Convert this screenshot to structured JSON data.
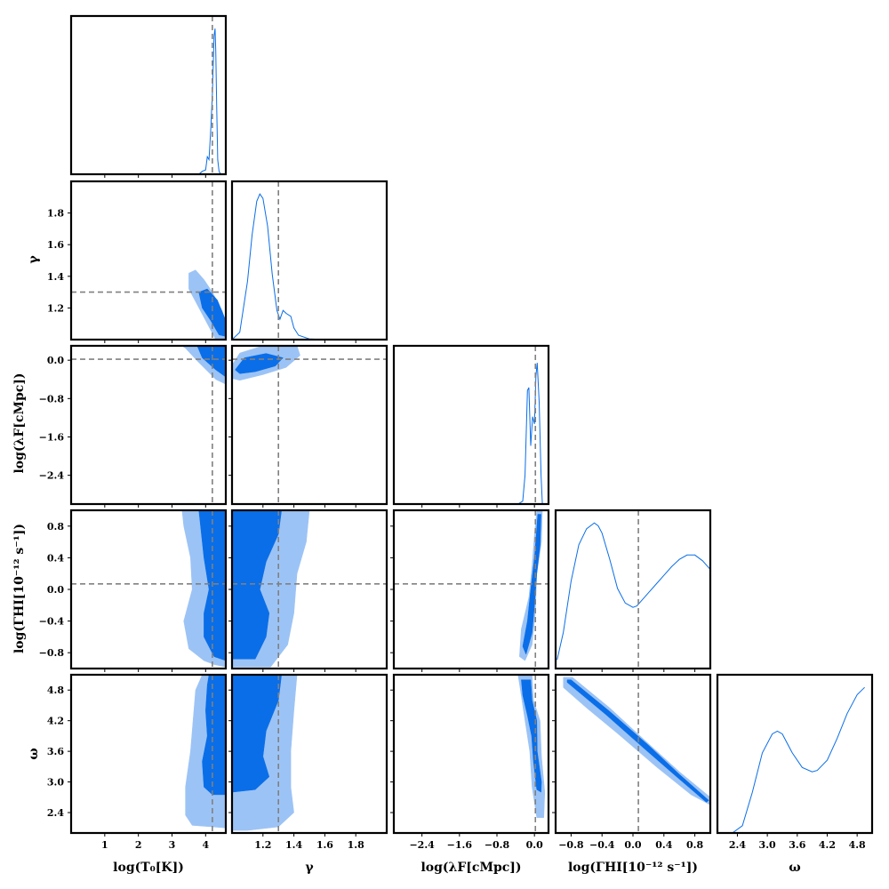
{
  "chart_data": {
    "type": "corner",
    "colors": {
      "outer_fill": "#9cc3f5",
      "inner_fill": "#0a6ee8",
      "line": "#0a6ee8",
      "truth_line": "#808080",
      "frame": "#000000"
    },
    "parameters": [
      {
        "label": "log(T₀[K])",
        "range": [
          0,
          4.6
        ],
        "ticks": [
          1,
          2,
          3,
          4
        ],
        "tick_labels": [
          "1",
          "2",
          "3",
          "4"
        ],
        "truth": 4.2
      },
      {
        "label": "γ",
        "range": [
          1.0,
          2.0
        ],
        "ticks": [
          1.2,
          1.4,
          1.6,
          1.8
        ],
        "tick_labels": [
          "1.2",
          "1.4",
          "1.6",
          "1.8"
        ],
        "truth": 1.3
      },
      {
        "label": "log(λF[cMpc])",
        "range": [
          -3.0,
          0.3
        ],
        "ticks": [
          -2.4,
          -1.6,
          -0.8,
          0.0
        ],
        "tick_labels": [
          "−2.4",
          "−1.6",
          "−0.8",
          "0.0"
        ],
        "truth": 0.02
      },
      {
        "label": "log(ΓHI[10⁻¹² s⁻¹])",
        "range": [
          -1.0,
          1.0
        ],
        "ticks": [
          -0.8,
          -0.4,
          0.0,
          0.4,
          0.8
        ],
        "tick_labels": [
          "−0.8",
          "−0.4",
          "0.0",
          "0.4",
          "0.8"
        ],
        "truth": 0.07
      },
      {
        "label": "ω",
        "range": [
          2.0,
          5.1
        ],
        "ticks": [
          2.4,
          3.0,
          3.6,
          4.2,
          4.8
        ],
        "tick_labels": [
          "2.4",
          "3.0",
          "3.6",
          "4.2",
          "4.8"
        ],
        "truth": null
      }
    ],
    "marginals": [
      {
        "param": 0,
        "x": [
          3.5,
          3.8,
          3.9,
          4.0,
          4.05,
          4.1,
          4.15,
          4.2,
          4.25,
          4.28,
          4.3,
          4.33,
          4.36,
          4.4,
          4.45,
          4.6
        ],
        "y": [
          0,
          0,
          0.02,
          0.03,
          0.12,
          0.1,
          0.3,
          0.55,
          0.95,
          1.0,
          0.85,
          0.45,
          0.1,
          0.02,
          0,
          0
        ]
      },
      {
        "param": 1,
        "x": [
          1.0,
          1.05,
          1.1,
          1.13,
          1.16,
          1.18,
          1.2,
          1.23,
          1.26,
          1.29,
          1.31,
          1.33,
          1.35,
          1.38,
          1.4,
          1.43,
          1.5,
          1.6,
          2.0
        ],
        "y": [
          0,
          0.05,
          0.4,
          0.72,
          0.95,
          1.0,
          0.97,
          0.78,
          0.45,
          0.2,
          0.14,
          0.2,
          0.18,
          0.16,
          0.08,
          0.03,
          0.005,
          0,
          0
        ]
      },
      {
        "param": 2,
        "x": [
          -0.6,
          -0.35,
          -0.25,
          -0.2,
          -0.15,
          -0.12,
          -0.08,
          -0.04,
          0.0,
          0.03,
          0.06,
          0.1,
          0.14,
          0.17,
          0.3
        ],
        "y": [
          0,
          0,
          0.02,
          0.2,
          0.78,
          0.8,
          0.4,
          0.6,
          0.55,
          0.88,
          0.97,
          0.7,
          0.2,
          0,
          0
        ]
      },
      {
        "param": 3,
        "x": [
          -0.98,
          -0.9,
          -0.8,
          -0.7,
          -0.6,
          -0.5,
          -0.45,
          -0.4,
          -0.3,
          -0.2,
          -0.1,
          0.0,
          0.05,
          0.1,
          0.2,
          0.3,
          0.4,
          0.5,
          0.6,
          0.7,
          0.8,
          0.9,
          1.0
        ],
        "y": [
          0.06,
          0.25,
          0.6,
          0.85,
          0.96,
          1.0,
          0.98,
          0.93,
          0.75,
          0.55,
          0.45,
          0.42,
          0.43,
          0.46,
          0.52,
          0.58,
          0.64,
          0.7,
          0.75,
          0.78,
          0.78,
          0.74,
          0.68
        ]
      },
      {
        "param": 4,
        "x": [
          2.0,
          2.3,
          2.5,
          2.7,
          2.9,
          3.1,
          3.2,
          3.3,
          3.5,
          3.7,
          3.9,
          4.0,
          4.2,
          4.4,
          4.6,
          4.8,
          4.95
        ],
        "y": [
          0,
          0,
          0.05,
          0.28,
          0.55,
          0.68,
          0.7,
          0.68,
          0.55,
          0.45,
          0.42,
          0.43,
          0.5,
          0.65,
          0.82,
          0.95,
          1.0
        ]
      }
    ],
    "joint_contours": [
      {
        "x": 0,
        "y": 1,
        "outer": [
          [
            3.5,
            1.42
          ],
          [
            3.7,
            1.44
          ],
          [
            3.95,
            1.38
          ],
          [
            4.2,
            1.3
          ],
          [
            4.5,
            1.18
          ],
          [
            4.6,
            1.1
          ],
          [
            4.6,
            1.0
          ],
          [
            4.3,
            1.0
          ],
          [
            4.0,
            1.12
          ],
          [
            3.7,
            1.24
          ],
          [
            3.5,
            1.32
          ]
        ],
        "inner": [
          [
            3.8,
            1.3
          ],
          [
            4.05,
            1.32
          ],
          [
            4.35,
            1.25
          ],
          [
            4.6,
            1.12
          ],
          [
            4.6,
            1.02
          ],
          [
            4.4,
            1.03
          ],
          [
            4.15,
            1.12
          ],
          [
            3.9,
            1.2
          ]
        ]
      },
      {
        "x": 0,
        "y": 2,
        "outer": [
          [
            3.3,
            0.3
          ],
          [
            4.6,
            0.3
          ],
          [
            4.6,
            -0.5
          ],
          [
            4.3,
            -0.4
          ],
          [
            3.8,
            -0.05
          ],
          [
            3.4,
            0.25
          ]
        ],
        "inner": [
          [
            3.75,
            0.3
          ],
          [
            4.6,
            0.3
          ],
          [
            4.6,
            -0.35
          ],
          [
            4.3,
            -0.2
          ],
          [
            3.9,
            0.05
          ]
        ]
      },
      {
        "x": 1,
        "y": 2,
        "outer": [
          [
            1.0,
            -0.1
          ],
          [
            1.05,
            0.15
          ],
          [
            1.2,
            0.3
          ],
          [
            1.42,
            0.3
          ],
          [
            1.44,
            0.1
          ],
          [
            1.35,
            -0.15
          ],
          [
            1.2,
            -0.3
          ],
          [
            1.05,
            -0.42
          ],
          [
            1.0,
            -0.38
          ]
        ],
        "inner": [
          [
            1.02,
            -0.2
          ],
          [
            1.08,
            0.05
          ],
          [
            1.22,
            0.14
          ],
          [
            1.33,
            0.05
          ],
          [
            1.28,
            -0.12
          ],
          [
            1.15,
            -0.24
          ],
          [
            1.05,
            -0.28
          ]
        ]
      },
      {
        "x": 0,
        "y": 3,
        "outer": [
          [
            3.3,
            1.0
          ],
          [
            4.6,
            1.0
          ],
          [
            4.6,
            -0.98
          ],
          [
            4.25,
            -0.95
          ],
          [
            3.95,
            -0.9
          ],
          [
            3.5,
            -0.75
          ],
          [
            3.35,
            -0.4
          ],
          [
            3.6,
            0.0
          ],
          [
            3.55,
            0.4
          ],
          [
            3.35,
            0.8
          ]
        ],
        "inner": [
          [
            3.8,
            1.0
          ],
          [
            4.6,
            1.0
          ],
          [
            4.6,
            -0.9
          ],
          [
            4.25,
            -0.85
          ],
          [
            3.95,
            -0.6
          ],
          [
            3.95,
            -0.3
          ],
          [
            4.1,
            0.0
          ],
          [
            3.95,
            0.4
          ],
          [
            3.85,
            0.8
          ]
        ]
      },
      {
        "x": 1,
        "y": 3,
        "outer": [
          [
            1.0,
            1.0
          ],
          [
            1.5,
            1.0
          ],
          [
            1.48,
            0.6
          ],
          [
            1.42,
            0.2
          ],
          [
            1.4,
            -0.3
          ],
          [
            1.36,
            -0.7
          ],
          [
            1.25,
            -0.98
          ],
          [
            1.0,
            -0.98
          ]
        ],
        "inner": [
          [
            1.0,
            1.0
          ],
          [
            1.32,
            1.0
          ],
          [
            1.3,
            0.7
          ],
          [
            1.22,
            0.35
          ],
          [
            1.18,
            0.0
          ],
          [
            1.24,
            -0.3
          ],
          [
            1.22,
            -0.6
          ],
          [
            1.15,
            -0.88
          ],
          [
            1.0,
            -0.88
          ]
        ]
      },
      {
        "x": 2,
        "y": 3,
        "outer": [
          [
            0.05,
            1.0
          ],
          [
            0.17,
            1.0
          ],
          [
            0.15,
            0.6
          ],
          [
            0.05,
            0.2
          ],
          [
            0.02,
            -0.3
          ],
          [
            -0.05,
            -0.7
          ],
          [
            -0.2,
            -0.9
          ],
          [
            -0.32,
            -0.85
          ],
          [
            -0.28,
            -0.5
          ],
          [
            -0.12,
            -0.1
          ],
          [
            -0.05,
            0.3
          ],
          [
            0.0,
            0.7
          ]
        ],
        "inner": [
          [
            0.07,
            0.95
          ],
          [
            0.14,
            0.95
          ],
          [
            0.12,
            0.55
          ],
          [
            0.05,
            0.2
          ],
          [
            0.0,
            -0.2
          ],
          [
            -0.05,
            -0.55
          ],
          [
            -0.18,
            -0.82
          ],
          [
            -0.25,
            -0.72
          ],
          [
            -0.15,
            -0.4
          ],
          [
            -0.08,
            0.0
          ],
          [
            0.0,
            0.4
          ],
          [
            0.04,
            0.7
          ]
        ]
      },
      {
        "x": 0,
        "y": 4,
        "outer": [
          [
            3.9,
            5.1
          ],
          [
            4.6,
            5.1
          ],
          [
            4.6,
            2.1
          ],
          [
            4.2,
            2.12
          ],
          [
            3.6,
            2.15
          ],
          [
            3.4,
            2.35
          ],
          [
            3.4,
            2.9
          ],
          [
            3.55,
            3.6
          ],
          [
            3.65,
            4.4
          ],
          [
            3.7,
            4.8
          ]
        ],
        "inner": [
          [
            4.1,
            5.1
          ],
          [
            4.6,
            5.1
          ],
          [
            4.6,
            2.75
          ],
          [
            4.2,
            2.75
          ],
          [
            3.95,
            2.9
          ],
          [
            3.9,
            3.4
          ],
          [
            4.05,
            3.9
          ],
          [
            4.0,
            4.4
          ],
          [
            4.05,
            4.9
          ]
        ]
      },
      {
        "x": 1,
        "y": 4,
        "outer": [
          [
            1.0,
            5.1
          ],
          [
            1.42,
            5.1
          ],
          [
            1.4,
            4.4
          ],
          [
            1.38,
            3.6
          ],
          [
            1.38,
            2.9
          ],
          [
            1.4,
            2.4
          ],
          [
            1.3,
            2.12
          ],
          [
            1.1,
            2.05
          ],
          [
            1.0,
            2.05
          ]
        ],
        "inner": [
          [
            1.0,
            5.1
          ],
          [
            1.32,
            5.1
          ],
          [
            1.3,
            4.6
          ],
          [
            1.22,
            4.0
          ],
          [
            1.2,
            3.5
          ],
          [
            1.24,
            3.1
          ],
          [
            1.15,
            2.85
          ],
          [
            1.0,
            2.8
          ]
        ]
      },
      {
        "x": 2,
        "y": 4,
        "outer": [
          [
            -0.35,
            5.1
          ],
          [
            -0.05,
            5.1
          ],
          [
            -0.02,
            4.6
          ],
          [
            0.12,
            4.2
          ],
          [
            0.15,
            3.5
          ],
          [
            0.22,
            2.8
          ],
          [
            0.2,
            2.3
          ],
          [
            0.05,
            2.3
          ],
          [
            -0.05,
            2.9
          ],
          [
            -0.1,
            3.6
          ],
          [
            -0.2,
            4.2
          ],
          [
            -0.3,
            4.8
          ]
        ],
        "inner": [
          [
            -0.28,
            5.0
          ],
          [
            -0.08,
            5.0
          ],
          [
            -0.05,
            4.6
          ],
          [
            0.05,
            4.2
          ],
          [
            0.06,
            3.6
          ],
          [
            0.15,
            3.0
          ],
          [
            0.14,
            2.8
          ],
          [
            0.05,
            2.85
          ],
          [
            -0.02,
            3.4
          ],
          [
            -0.06,
            3.9
          ],
          [
            -0.15,
            4.3
          ],
          [
            -0.25,
            4.7
          ]
        ]
      },
      {
        "x": 3,
        "y": 4,
        "outer": [
          [
            -0.9,
            5.05
          ],
          [
            -0.78,
            5.05
          ],
          [
            -0.3,
            4.45
          ],
          [
            0.2,
            3.75
          ],
          [
            0.6,
            3.2
          ],
          [
            1.0,
            2.7
          ],
          [
            1.0,
            2.55
          ],
          [
            0.75,
            2.75
          ],
          [
            0.3,
            3.3
          ],
          [
            -0.2,
            3.95
          ],
          [
            -0.6,
            4.45
          ],
          [
            -0.9,
            4.85
          ]
        ],
        "inner": [
          [
            -0.85,
            5.0
          ],
          [
            -0.8,
            5.0
          ],
          [
            -0.3,
            4.38
          ],
          [
            0.2,
            3.72
          ],
          [
            0.6,
            3.15
          ],
          [
            0.98,
            2.64
          ],
          [
            0.95,
            2.6
          ],
          [
            0.55,
            3.12
          ],
          [
            0.15,
            3.65
          ],
          [
            -0.35,
            4.32
          ],
          [
            -0.85,
            4.95
          ]
        ]
      }
    ]
  }
}
